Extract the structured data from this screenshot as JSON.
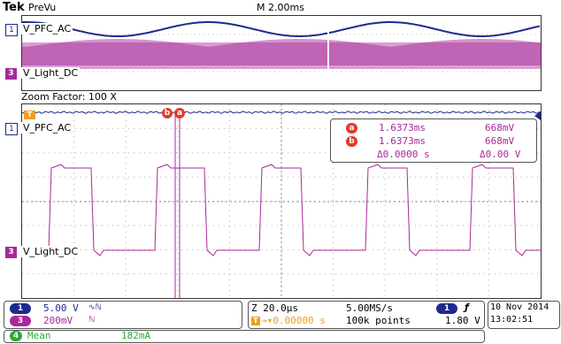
{
  "header": {
    "brand": "Tek",
    "mode": "PreVu",
    "timebase": "M 2.00ms",
    "trigger_marker": "T"
  },
  "overview": {
    "ch1_label": "V_PFC_AC",
    "ch1_marker": "1",
    "ch3_label": "V_Light_DC",
    "ch3_marker": "3"
  },
  "zoom": {
    "label": "Zoom Factor: 100 X",
    "ch1_label": "V_PFC_AC",
    "ch1_marker": "1",
    "ch3_label": "V_Light_DC",
    "ch3_marker": "3",
    "trigger_marker": "T",
    "cursor_b": "b",
    "cursor_a": "a"
  },
  "cursors": {
    "a": {
      "marker": "a",
      "time": "1.6373ms",
      "value": "668mV"
    },
    "b": {
      "marker": "b",
      "time": "1.6373ms",
      "value": "668mV"
    },
    "delta_time": "Δ0.0000 s",
    "delta_value": "Δ0.00 V"
  },
  "status": {
    "ch1": {
      "num": "1",
      "scale": "5.00 V",
      "coupling": "∿ℕ"
    },
    "ch3": {
      "num": "3",
      "scale": "200mV",
      "coupling": "ℕ"
    },
    "zoom_time": "Z 20.0µs",
    "sample_rate": "5.00MS/s",
    "trig_pos_marker": "T",
    "trig_pos": "→▾0.00000 s",
    "record_length": "100k points",
    "trig_source": "1",
    "trig_slope": "ƒ",
    "trig_level": "1.80 V",
    "date": "10 Nov 2014",
    "time": "13:02:51",
    "meas_num": "4",
    "meas_type": "Mean",
    "meas_value": "182mA"
  },
  "colors": {
    "ch1": "#1e2a8c",
    "ch3": "#a8299a",
    "cursor": "#e03c2a",
    "trigger": "#f0a020",
    "meas": "#2ea83a"
  }
}
